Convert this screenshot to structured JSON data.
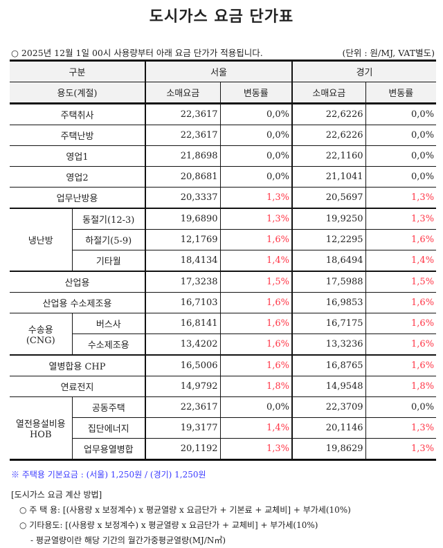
{
  "title": "도시가스 요금 단가표",
  "notice": "○ 2025년 12월 1일 00시 사용량부터 아래 요금 단가가 적용됩니다.",
  "unit": "(단위 : 원/MJ, VAT별도)",
  "header": {
    "category": "구분",
    "usage": "용도(계절)",
    "region1": "서울",
    "region2": "경기",
    "price": "소매요금",
    "change": "변동률"
  },
  "rows": [
    {
      "group": "주택취사",
      "sub": "",
      "seoul_price": "22,3617",
      "seoul_change": "0,0%",
      "gg_price": "22,6226",
      "gg_change": "0,0%"
    },
    {
      "group": "주택난방",
      "sub": "",
      "seoul_price": "22,3617",
      "seoul_change": "0,0%",
      "gg_price": "22,6226",
      "gg_change": "0,0%"
    },
    {
      "group": "영업1",
      "sub": "",
      "seoul_price": "21,8698",
      "seoul_change": "0,0%",
      "gg_price": "22,1160",
      "gg_change": "0,0%"
    },
    {
      "group": "영업2",
      "sub": "",
      "seoul_price": "20,8681",
      "seoul_change": "0,0%",
      "gg_price": "21,1041",
      "gg_change": "0,0%"
    },
    {
      "group": "업무난방용",
      "sub": "",
      "seoul_price": "20,3337",
      "seoul_change": "1,3%",
      "gg_price": "20,5697",
      "gg_change": "1,3%"
    },
    {
      "group": "냉난방",
      "span": 3,
      "sub": "동절기(12-3)",
      "seoul_price": "19,6890",
      "seoul_change": "1,3%",
      "gg_price": "19,9250",
      "gg_change": "1,3%"
    },
    {
      "group": null,
      "sub": "하절기(5-9)",
      "seoul_price": "12,1769",
      "seoul_change": "1,6%",
      "gg_price": "12,2295",
      "gg_change": "1,6%"
    },
    {
      "group": null,
      "sub": "기타월",
      "seoul_price": "18,4134",
      "seoul_change": "1,4%",
      "gg_price": "18,6494",
      "gg_change": "1,4%"
    },
    {
      "group": "산업용",
      "sub": "",
      "seoul_price": "17,3238",
      "seoul_change": "1,5%",
      "gg_price": "17,5988",
      "gg_change": "1,5%"
    },
    {
      "group": "산업용 수소제조용",
      "sub": "",
      "seoul_price": "16,7103",
      "seoul_change": "1,6%",
      "gg_price": "16,9853",
      "gg_change": "1,6%"
    },
    {
      "group": "수송용\n(CNG)",
      "span": 2,
      "sub": "버스사",
      "seoul_price": "16,8141",
      "seoul_change": "1,6%",
      "gg_price": "16,7175",
      "gg_change": "1,6%"
    },
    {
      "group": null,
      "sub": "수소제조용",
      "seoul_price": "13,4202",
      "seoul_change": "1,6%",
      "gg_price": "13,3236",
      "gg_change": "1,6%"
    },
    {
      "group": "열병합용 CHP",
      "sub": "",
      "seoul_price": "16,5006",
      "seoul_change": "1,6%",
      "gg_price": "16,8765",
      "gg_change": "1,6%"
    },
    {
      "group": "연료전지",
      "sub": "",
      "seoul_price": "14,9792",
      "seoul_change": "1,8%",
      "gg_price": "14,9548",
      "gg_change": "1,8%"
    },
    {
      "group": "열전용설비용\nHOB",
      "span": 3,
      "sub": "공동주택",
      "seoul_price": "22,3617",
      "seoul_change": "0,0%",
      "gg_price": "22,3709",
      "gg_change": "0,0%"
    },
    {
      "group": null,
      "sub": "집단에너지",
      "seoul_price": "19,3177",
      "seoul_change": "1,4%",
      "gg_price": "20,1146",
      "gg_change": "1,3%"
    },
    {
      "group": null,
      "sub": "업무용열병합",
      "seoul_price": "20,1192",
      "seoul_change": "1,3%",
      "gg_price": "19,8629",
      "gg_change": "1,3%"
    }
  ],
  "colors": {
    "increase": "#ff3344",
    "note": "#3a3aff"
  },
  "note": "※ 주택용 기본요금 : (서울) 1,250원 / (경기) 1,250원",
  "calc": {
    "heading": "[도시가스 요금 계산 방법]",
    "residential": "○ 주 택 용: [(사용량 x 보정계수) x 평균열량 x 요금단가 + 기본료 + 교체비] + 부가세(10%)",
    "other": "○ 기타용도: [(사용량 x 보정계수) x 평균열량 x 요금단가 + 교체비] + 부가세(10%)",
    "definition": "- 평균열량이란 해당 기간의 월간가중평균열량(MJ/N㎥)"
  }
}
